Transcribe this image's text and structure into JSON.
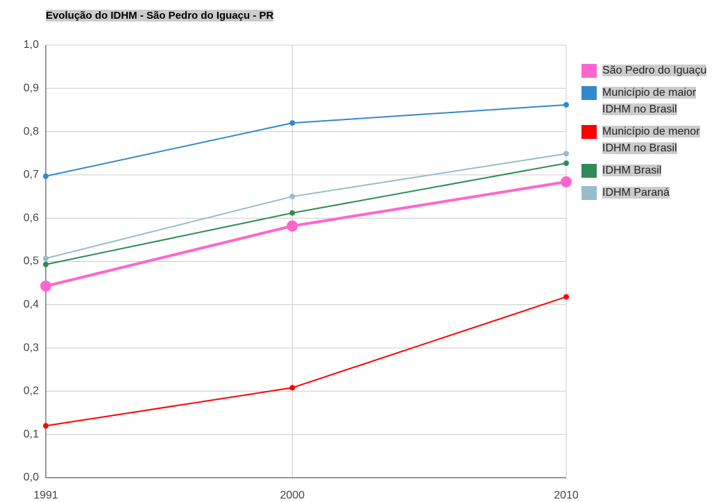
{
  "chart_data": {
    "type": "line",
    "title": "Evolução do IDHM - São Pedro do Iguaçu - PR",
    "x": [
      1991,
      2000,
      2010
    ],
    "series": [
      {
        "name": "São Pedro do Iguaçu",
        "color": "#ff66cc",
        "values": [
          0.443,
          0.582,
          0.684
        ]
      },
      {
        "name": "Município de maior IDHM no Brasil",
        "color": "#3388cc",
        "values": [
          0.697,
          0.82,
          0.862
        ]
      },
      {
        "name": "Município de menor IDHM no Brasil",
        "color": "#ff0000",
        "values": [
          0.12,
          0.208,
          0.418
        ]
      },
      {
        "name": "IDHM Brasil",
        "color": "#2e8b57",
        "values": [
          0.493,
          0.612,
          0.727
        ]
      },
      {
        "name": "IDHM Paraná",
        "color": "#99bbcc",
        "values": [
          0.507,
          0.65,
          0.749
        ]
      }
    ],
    "xlim": [
      1991,
      2010
    ],
    "xticks": [
      1991,
      2000,
      2010
    ],
    "ylim": [
      0,
      1
    ],
    "yticks": [
      {
        "value": 0,
        "label": "0,0"
      },
      {
        "value": 0.1,
        "label": "0,1"
      },
      {
        "value": 0.2,
        "label": "0,2"
      },
      {
        "value": 0.3,
        "label": "0,3"
      },
      {
        "value": 0.4,
        "label": "0,4"
      },
      {
        "value": 0.5,
        "label": "0,5"
      },
      {
        "value": 0.6,
        "label": "0,6"
      },
      {
        "value": 0.7,
        "label": "0,7"
      },
      {
        "value": 0.8,
        "label": "0,8"
      },
      {
        "value": 0.9,
        "label": "0,9"
      },
      {
        "value": 1,
        "label": "1,0"
      }
    ],
    "grid": true,
    "legend": "right"
  }
}
